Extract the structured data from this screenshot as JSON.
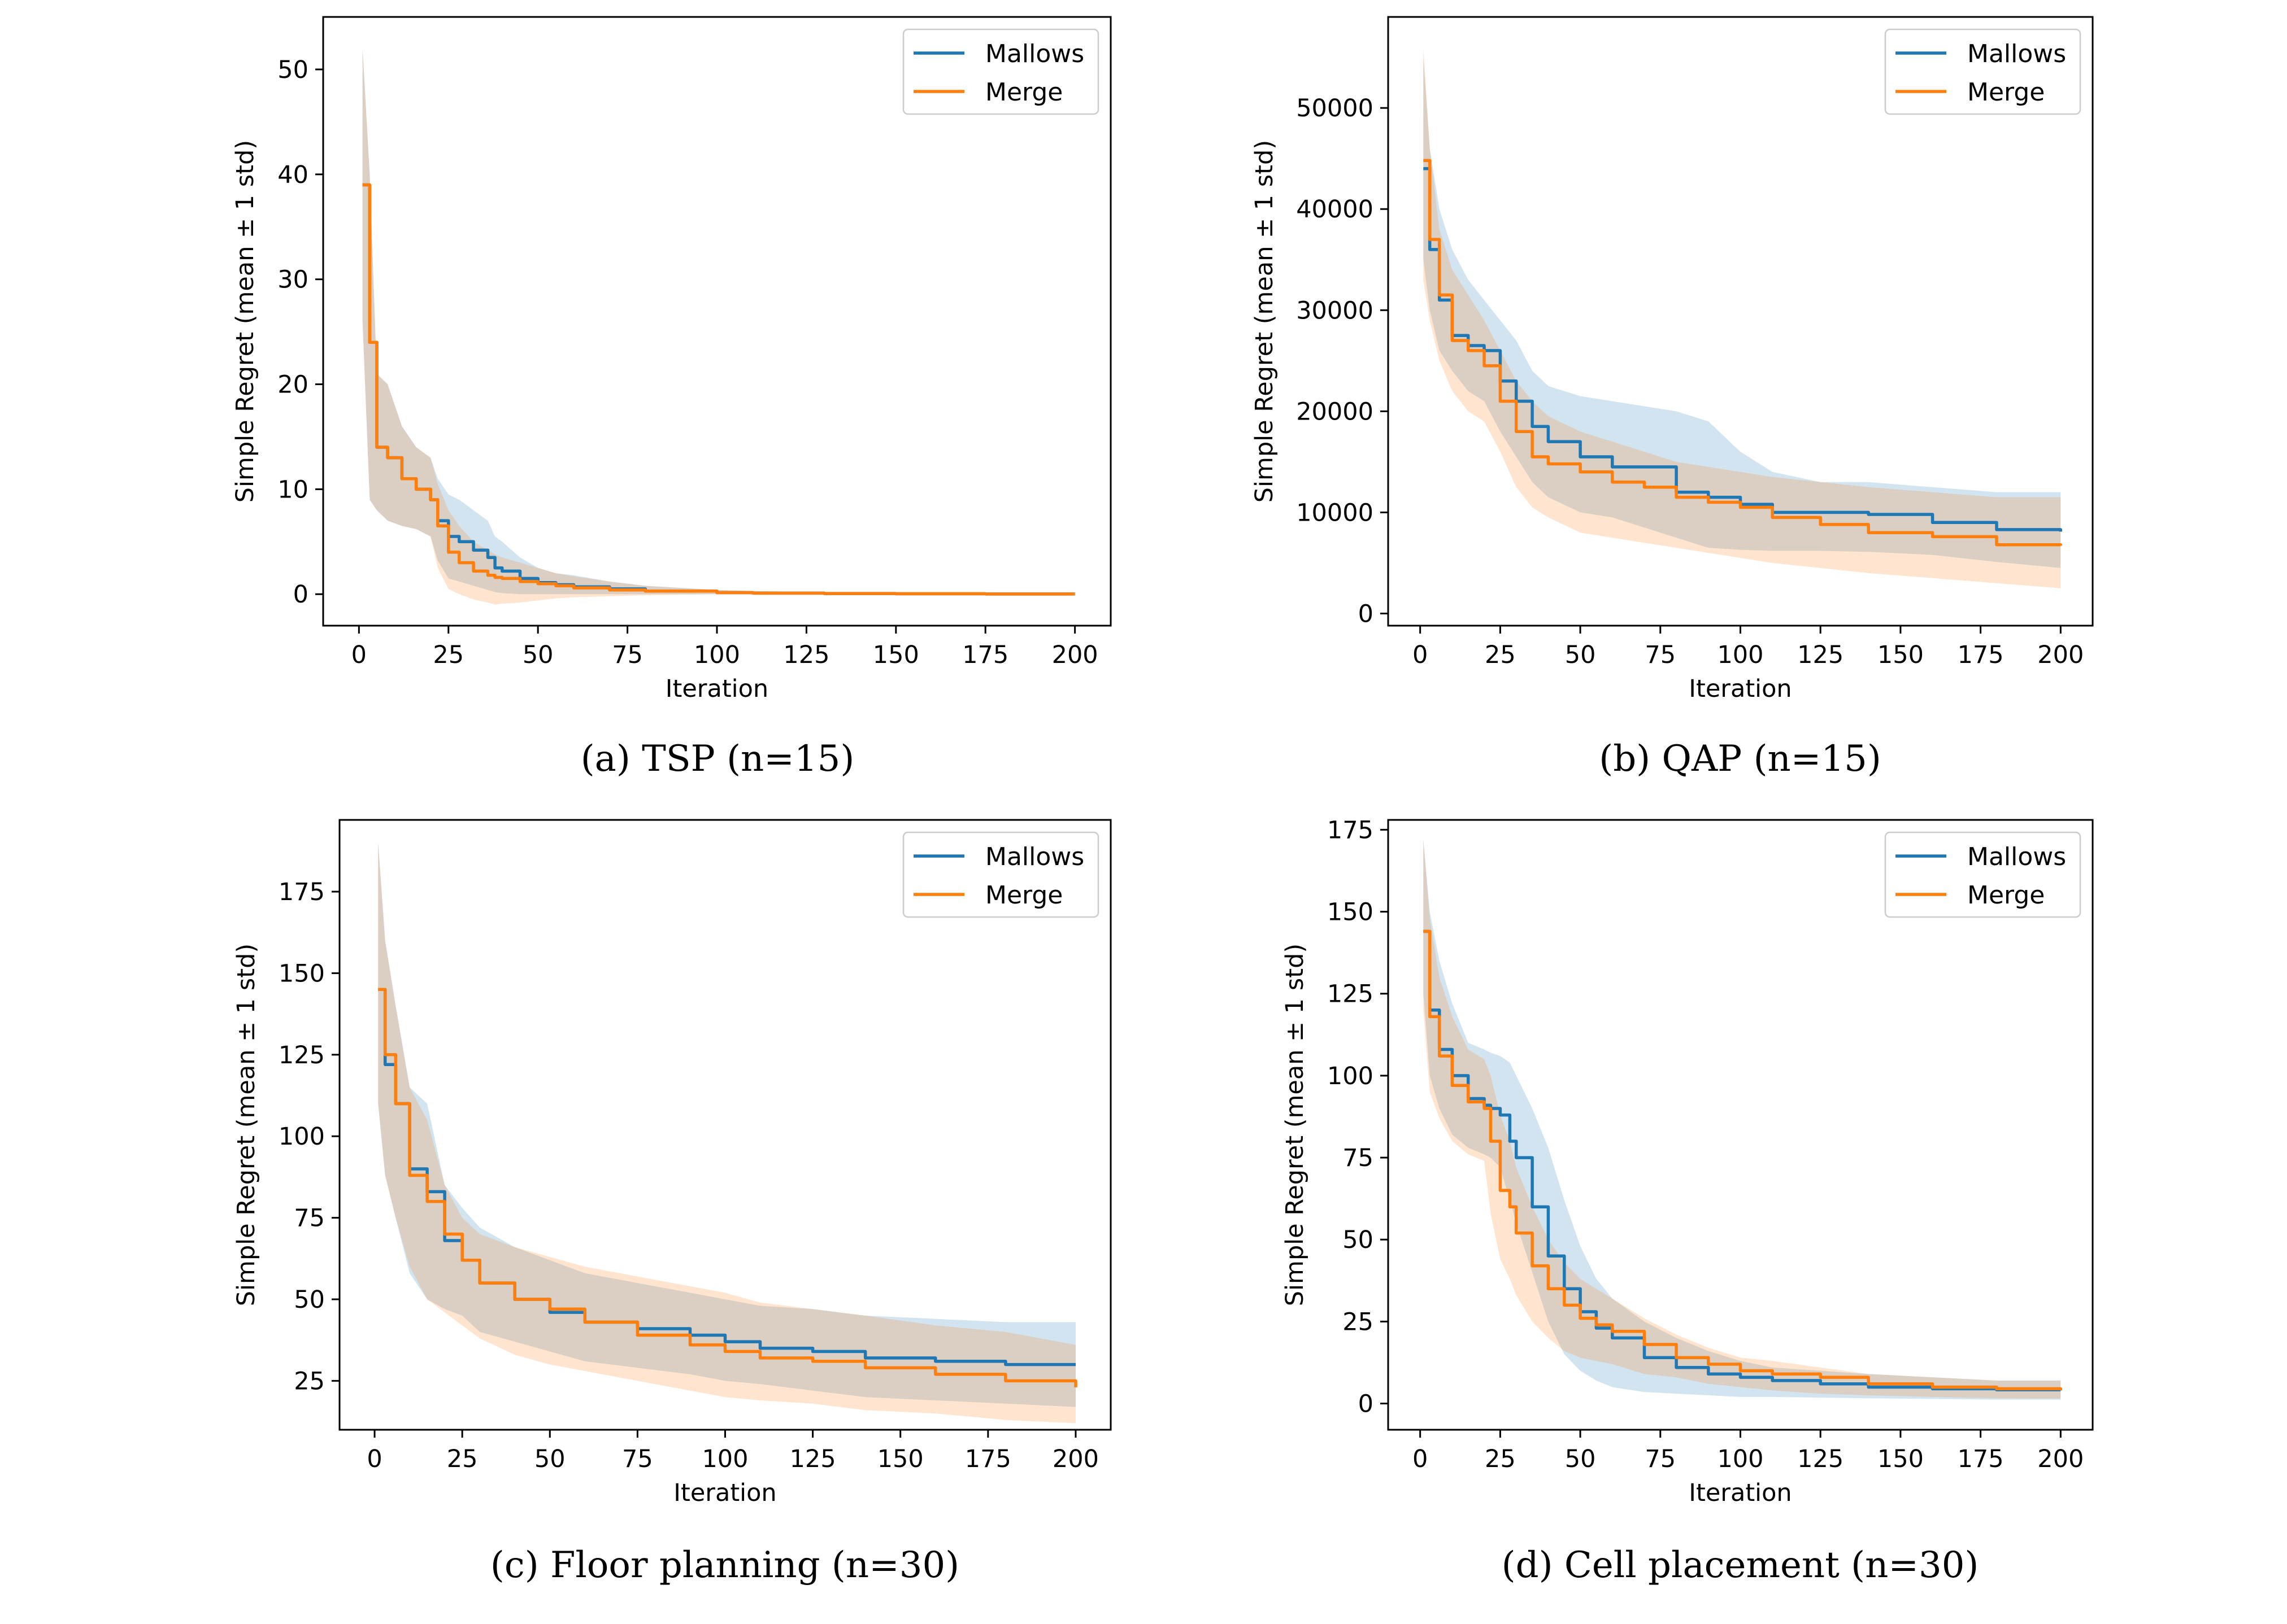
{
  "figure": {
    "colors": {
      "mallows": "#1f77b4",
      "merge": "#ff7f0e"
    }
  },
  "chart_data": [
    {
      "type": "line",
      "caption": "(a) TSP (n=15)",
      "xlabel": "Iteration",
      "ylabel": "Simple Regret (mean ± 1 std)",
      "xlim": [
        -10,
        210
      ],
      "ylim": [
        -3,
        55
      ],
      "xticks": [
        0,
        25,
        50,
        75,
        100,
        125,
        150,
        175,
        200
      ],
      "yticks": [
        0,
        10,
        20,
        30,
        40,
        50
      ],
      "legend": {
        "position": "top-right",
        "entries": [
          "Mallows",
          "Merge"
        ]
      },
      "series": [
        {
          "name": "Mallows",
          "x": [
            1,
            3,
            5,
            8,
            12,
            16,
            20,
            22,
            25,
            28,
            32,
            36,
            38,
            40,
            45,
            50,
            55,
            60,
            70,
            80,
            100,
            110,
            130,
            150,
            175,
            200
          ],
          "mean": [
            39,
            24,
            14,
            13,
            11,
            10,
            9,
            7,
            5.5,
            5,
            4.2,
            3.5,
            2.5,
            2.2,
            1.5,
            1.1,
            0.9,
            0.7,
            0.5,
            0.3,
            0.15,
            0.1,
            0.06,
            0.04,
            0.02,
            0.02
          ],
          "upper": [
            52,
            40,
            21,
            20,
            16,
            14,
            13,
            11,
            9.5,
            9,
            8,
            7,
            5.5,
            5,
            3.5,
            2.5,
            2,
            1.8,
            1.2,
            0.8,
            0.4,
            0.3,
            0.2,
            0.15,
            0.1,
            0.1
          ],
          "lower": [
            26,
            9,
            8,
            7,
            6.5,
            6.2,
            5.5,
            3.2,
            1.5,
            1.2,
            0.8,
            0.4,
            0.2,
            0.1,
            0,
            0,
            0,
            0,
            0,
            0,
            0,
            0,
            0,
            0,
            0,
            0
          ]
        },
        {
          "name": "Merge",
          "x": [
            1,
            3,
            5,
            8,
            12,
            16,
            20,
            22,
            25,
            28,
            32,
            36,
            38,
            40,
            45,
            50,
            55,
            60,
            70,
            80,
            100,
            110,
            130,
            150,
            175,
            200
          ],
          "mean": [
            39,
            24,
            14,
            13,
            11,
            10,
            9,
            6.5,
            4,
            3,
            2.2,
            1.8,
            1.6,
            1.5,
            1.2,
            1,
            0.8,
            0.6,
            0.4,
            0.3,
            0.15,
            0.1,
            0.06,
            0.04,
            0.02,
            0.02
          ],
          "upper": [
            52,
            40,
            21,
            20,
            16,
            14,
            13,
            10.5,
            8,
            6.5,
            5,
            4.2,
            3.8,
            3.5,
            3,
            2.5,
            2,
            1.7,
            1.2,
            0.8,
            0.4,
            0.3,
            0.2,
            0.15,
            0.1,
            0.1
          ],
          "lower": [
            26,
            9,
            8,
            7,
            6.5,
            6.2,
            5.5,
            2.5,
            0.5,
            0,
            -0.5,
            -0.8,
            -1,
            -0.9,
            -0.8,
            -0.6,
            -0.4,
            -0.3,
            -0.2,
            -0.1,
            0,
            0,
            0,
            0,
            0,
            0
          ]
        }
      ]
    },
    {
      "type": "line",
      "caption": "(b) QAP (n=15)",
      "xlabel": "Iteration",
      "ylabel": "Simple Regret (mean ± 1 std)",
      "xlim": [
        -10,
        210
      ],
      "ylim": [
        -1200,
        59000
      ],
      "xticks": [
        0,
        25,
        50,
        75,
        100,
        125,
        150,
        175,
        200
      ],
      "yticks": [
        0,
        10000,
        20000,
        30000,
        40000,
        50000
      ],
      "legend": {
        "position": "top-right",
        "entries": [
          "Mallows",
          "Merge"
        ]
      },
      "series": [
        {
          "name": "Mallows",
          "x": [
            1,
            3,
            6,
            10,
            15,
            20,
            25,
            30,
            35,
            40,
            50,
            60,
            70,
            80,
            90,
            100,
            110,
            125,
            140,
            160,
            180,
            200
          ],
          "mean": [
            44000,
            36000,
            31000,
            27500,
            26500,
            26000,
            23000,
            21000,
            18500,
            17000,
            15500,
            14500,
            14500,
            12000,
            11500,
            10800,
            10000,
            10000,
            9800,
            9000,
            8300,
            8100
          ],
          "upper": [
            55000,
            46000,
            40000,
            36000,
            33000,
            31000,
            29000,
            27000,
            24000,
            22500,
            21500,
            21000,
            20500,
            20000,
            19000,
            16000,
            14000,
            13000,
            13000,
            12500,
            12000,
            12000
          ],
          "lower": [
            35000,
            30000,
            26000,
            24000,
            22000,
            21000,
            18000,
            15500,
            13000,
            11500,
            10000,
            9500,
            8500,
            7500,
            6500,
            6300,
            6200,
            6200,
            6100,
            5800,
            5100,
            4500
          ]
        },
        {
          "name": "Merge",
          "x": [
            1,
            3,
            6,
            10,
            15,
            20,
            25,
            30,
            35,
            40,
            50,
            60,
            70,
            80,
            90,
            100,
            110,
            125,
            140,
            160,
            180,
            200
          ],
          "mean": [
            44800,
            37000,
            31500,
            27000,
            26000,
            24500,
            21000,
            18000,
            15500,
            14800,
            14000,
            13000,
            12500,
            11500,
            11000,
            10500,
            9500,
            8800,
            8000,
            7600,
            6800,
            6700
          ],
          "upper": [
            56000,
            46000,
            38000,
            34000,
            31500,
            29000,
            26000,
            23000,
            21000,
            19500,
            18000,
            17000,
            16000,
            15000,
            14500,
            14000,
            13500,
            13000,
            12500,
            12000,
            11500,
            11500
          ],
          "lower": [
            33000,
            29000,
            25000,
            22000,
            20000,
            19000,
            16000,
            12500,
            10500,
            9500,
            8000,
            7500,
            7000,
            6500,
            6000,
            5500,
            5000,
            4500,
            4000,
            3500,
            3000,
            2500
          ]
        }
      ]
    },
    {
      "type": "line",
      "caption": "(c) Floor planning (n=30)",
      "xlabel": "Iteration",
      "ylabel": "Simple Regret (mean ± 1 std)",
      "xlim": [
        -10,
        210
      ],
      "ylim": [
        10,
        197
      ],
      "xticks": [
        0,
        25,
        50,
        75,
        100,
        125,
        150,
        175,
        200
      ],
      "yticks": [
        25,
        50,
        75,
        100,
        125,
        150,
        175
      ],
      "legend": {
        "position": "top-right",
        "entries": [
          "Mallows",
          "Merge"
        ]
      },
      "series": [
        {
          "name": "Mallows",
          "x": [
            1,
            3,
            6,
            10,
            15,
            20,
            25,
            30,
            40,
            50,
            60,
            75,
            90,
            100,
            110,
            125,
            140,
            160,
            180,
            200
          ],
          "mean": [
            145,
            122,
            110,
            90,
            83,
            68,
            62,
            55,
            50,
            46,
            43,
            41,
            39,
            37,
            35,
            34,
            32,
            31,
            30,
            30
          ],
          "upper": [
            190,
            160,
            140,
            115,
            110,
            85,
            78,
            72,
            66,
            62,
            58,
            55,
            52,
            50,
            48,
            47,
            45,
            44,
            43,
            43
          ],
          "lower": [
            110,
            88,
            75,
            58,
            50,
            47,
            45,
            40,
            37,
            34,
            31,
            29,
            27,
            25,
            24,
            22,
            20,
            19,
            18,
            17
          ]
        },
        {
          "name": "Merge",
          "x": [
            1,
            3,
            6,
            10,
            15,
            20,
            25,
            30,
            40,
            50,
            60,
            75,
            90,
            100,
            110,
            125,
            140,
            160,
            180,
            200
          ],
          "mean": [
            145,
            125,
            110,
            88,
            80,
            70,
            62,
            55,
            50,
            47,
            43,
            39,
            36,
            34,
            32,
            31,
            29,
            27,
            25,
            23
          ],
          "upper": [
            190,
            160,
            140,
            115,
            105,
            85,
            75,
            70,
            66,
            63,
            60,
            57,
            54,
            52,
            49,
            47,
            45,
            42,
            40,
            36
          ],
          "lower": [
            110,
            88,
            75,
            60,
            50,
            46,
            42,
            38,
            33,
            30,
            28,
            25,
            22,
            20,
            19,
            18,
            16,
            15,
            13,
            12
          ]
        }
      ]
    },
    {
      "type": "line",
      "caption": "(d) Cell placement (n=30)",
      "xlabel": "Iteration",
      "ylabel": "Simple Regret (mean ± 1 std)",
      "xlim": [
        -10,
        210
      ],
      "ylim": [
        -8,
        178
      ],
      "xticks": [
        0,
        25,
        50,
        75,
        100,
        125,
        150,
        175,
        200
      ],
      "yticks": [
        0,
        25,
        50,
        75,
        100,
        125,
        150,
        175
      ],
      "legend": {
        "position": "top-right",
        "entries": [
          "Mallows",
          "Merge"
        ]
      },
      "series": [
        {
          "name": "Mallows",
          "x": [
            1,
            3,
            6,
            10,
            15,
            20,
            22,
            25,
            28,
            30,
            35,
            40,
            45,
            50,
            55,
            60,
            70,
            80,
            90,
            100,
            110,
            125,
            140,
            160,
            180,
            200
          ],
          "mean": [
            144,
            120,
            108,
            100,
            93,
            91,
            90,
            88,
            80,
            75,
            60,
            45,
            35,
            28,
            23,
            20,
            14,
            11,
            9,
            8,
            7,
            6,
            5,
            4.5,
            4.2,
            4
          ],
          "upper": [
            172,
            150,
            135,
            122,
            110,
            108,
            107,
            106,
            104,
            100,
            90,
            78,
            62,
            48,
            38,
            32,
            25,
            20,
            16,
            13,
            11,
            10,
            9,
            8,
            7,
            7
          ],
          "lower": [
            125,
            100,
            90,
            82,
            78,
            76,
            75,
            72,
            62,
            55,
            40,
            25,
            15,
            10,
            7,
            5,
            3.5,
            3,
            2.5,
            2,
            2,
            1.8,
            1.6,
            1.4,
            1.2,
            1.2
          ]
        },
        {
          "name": "Merge",
          "x": [
            1,
            3,
            6,
            10,
            15,
            20,
            22,
            25,
            28,
            30,
            35,
            40,
            45,
            50,
            55,
            60,
            70,
            80,
            90,
            100,
            110,
            125,
            140,
            160,
            180,
            200
          ],
          "mean": [
            144,
            118,
            106,
            97,
            92,
            90,
            80,
            65,
            60,
            52,
            42,
            35,
            30,
            26,
            24,
            22,
            18,
            14,
            12,
            10,
            9,
            8,
            6,
            5,
            4.5,
            4
          ],
          "upper": [
            172,
            148,
            130,
            118,
            108,
            105,
            100,
            88,
            80,
            72,
            60,
            50,
            43,
            38,
            35,
            32,
            26,
            21,
            17,
            14,
            13,
            11,
            9,
            8,
            7,
            7
          ],
          "lower": [
            120,
            95,
            87,
            80,
            76,
            74,
            58,
            44,
            38,
            33,
            25,
            20,
            16,
            14,
            13,
            12,
            9,
            8,
            6,
            5,
            4,
            3,
            2.5,
            2,
            1.6,
            1.5
          ]
        }
      ]
    }
  ]
}
